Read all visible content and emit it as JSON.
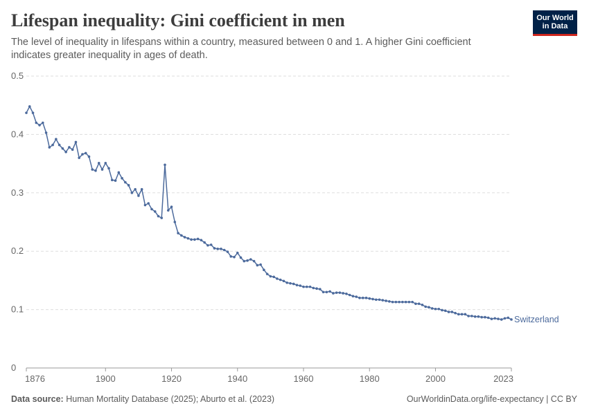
{
  "header": {
    "title": "Lifespan inequality: Gini coefficient in men",
    "subtitle": "The level of inequality in lifespans within a country, measured between 0 and 1. A higher Gini coefficient indicates greater inequality in ages of death.",
    "logo_line1": "Our World",
    "logo_line2": "in Data"
  },
  "footer": {
    "source_label": "Data source:",
    "source_text": "Human Mortality Database (2025); Aburto et al. (2023)",
    "link_text": "OurWorldinData.org/life-expectancy | CC BY"
  },
  "colors": {
    "line": "#4c6a9c",
    "grid": "#dddddd",
    "axis": "#5b5b5b",
    "logo_bg": "#002147",
    "logo_accent": "#ce261e"
  },
  "chart_data": {
    "type": "line",
    "title": "Lifespan inequality: Gini coefficient in men",
    "xlabel": "",
    "ylabel": "",
    "xlim": [
      1876,
      2023
    ],
    "ylim": [
      0,
      0.5
    ],
    "x_ticks": [
      1876,
      1900,
      1920,
      1940,
      1960,
      1980,
      2000,
      2023
    ],
    "y_ticks": [
      0,
      0.1,
      0.2,
      0.3,
      0.4,
      0.5
    ],
    "y_tick_labels": [
      "0",
      "0.1",
      "0.2",
      "0.3",
      "0.4",
      "0.5"
    ],
    "grid": "horizontal dashed",
    "series": [
      {
        "name": "Switzerland",
        "x": [
          1876,
          1877,
          1878,
          1879,
          1880,
          1881,
          1882,
          1883,
          1884,
          1885,
          1886,
          1887,
          1888,
          1889,
          1890,
          1891,
          1892,
          1893,
          1894,
          1895,
          1896,
          1897,
          1898,
          1899,
          1900,
          1901,
          1902,
          1903,
          1904,
          1905,
          1906,
          1907,
          1908,
          1909,
          1910,
          1911,
          1912,
          1913,
          1914,
          1915,
          1916,
          1917,
          1918,
          1919,
          1920,
          1921,
          1922,
          1923,
          1924,
          1925,
          1926,
          1927,
          1928,
          1929,
          1930,
          1931,
          1932,
          1933,
          1934,
          1935,
          1936,
          1937,
          1938,
          1939,
          1940,
          1941,
          1942,
          1943,
          1944,
          1945,
          1946,
          1947,
          1948,
          1949,
          1950,
          1951,
          1952,
          1953,
          1954,
          1955,
          1956,
          1957,
          1958,
          1959,
          1960,
          1961,
          1962,
          1963,
          1964,
          1965,
          1966,
          1967,
          1968,
          1969,
          1970,
          1971,
          1972,
          1973,
          1974,
          1975,
          1976,
          1977,
          1978,
          1979,
          1980,
          1981,
          1982,
          1983,
          1984,
          1985,
          1986,
          1987,
          1988,
          1989,
          1990,
          1991,
          1992,
          1993,
          1994,
          1995,
          1996,
          1997,
          1998,
          1999,
          2000,
          2001,
          2002,
          2003,
          2004,
          2005,
          2006,
          2007,
          2008,
          2009,
          2010,
          2011,
          2012,
          2013,
          2014,
          2015,
          2016,
          2017,
          2018,
          2019,
          2020,
          2021,
          2022,
          2023
        ],
        "values": [
          0.437,
          0.448,
          0.437,
          0.42,
          0.416,
          0.42,
          0.403,
          0.378,
          0.382,
          0.392,
          0.382,
          0.376,
          0.37,
          0.378,
          0.374,
          0.387,
          0.36,
          0.366,
          0.368,
          0.362,
          0.34,
          0.338,
          0.351,
          0.34,
          0.351,
          0.342,
          0.322,
          0.321,
          0.335,
          0.325,
          0.318,
          0.313,
          0.3,
          0.306,
          0.295,
          0.306,
          0.279,
          0.282,
          0.272,
          0.268,
          0.26,
          0.257,
          0.348,
          0.27,
          0.276,
          0.25,
          0.231,
          0.227,
          0.224,
          0.222,
          0.22,
          0.22,
          0.221,
          0.219,
          0.215,
          0.21,
          0.211,
          0.205,
          0.204,
          0.204,
          0.202,
          0.199,
          0.191,
          0.19,
          0.197,
          0.189,
          0.183,
          0.184,
          0.186,
          0.183,
          0.176,
          0.177,
          0.168,
          0.161,
          0.157,
          0.156,
          0.153,
          0.151,
          0.149,
          0.146,
          0.145,
          0.144,
          0.142,
          0.141,
          0.139,
          0.139,
          0.139,
          0.137,
          0.136,
          0.135,
          0.13,
          0.13,
          0.131,
          0.128,
          0.129,
          0.129,
          0.128,
          0.127,
          0.125,
          0.123,
          0.122,
          0.12,
          0.12,
          0.12,
          0.119,
          0.118,
          0.117,
          0.117,
          0.116,
          0.115,
          0.114,
          0.113,
          0.113,
          0.113,
          0.113,
          0.113,
          0.113,
          0.113,
          0.11,
          0.11,
          0.108,
          0.105,
          0.104,
          0.102,
          0.101,
          0.101,
          0.099,
          0.098,
          0.096,
          0.096,
          0.094,
          0.092,
          0.092,
          0.092,
          0.089,
          0.089,
          0.088,
          0.088,
          0.087,
          0.087,
          0.086,
          0.084,
          0.085,
          0.084,
          0.083,
          0.085,
          0.086,
          0.083
        ]
      }
    ]
  }
}
